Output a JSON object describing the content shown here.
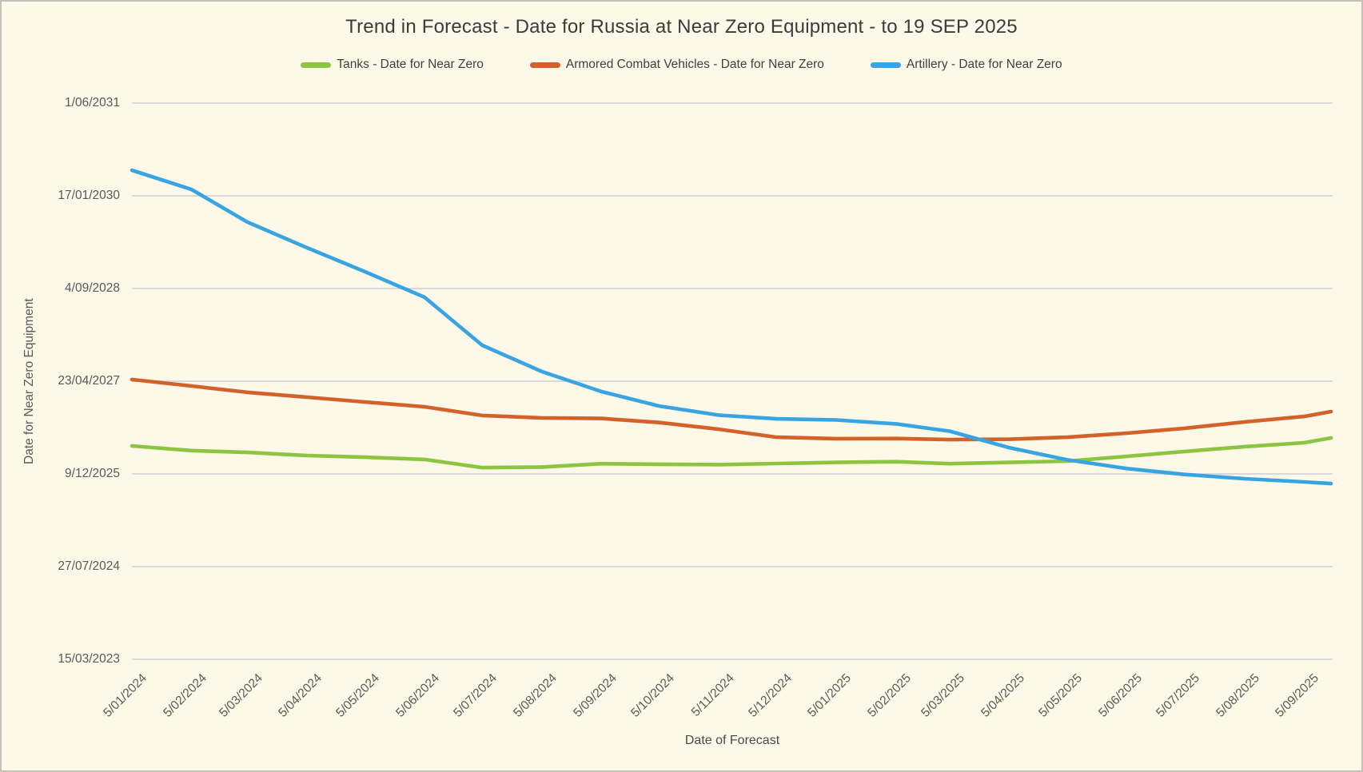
{
  "chart_data": {
    "type": "line",
    "title": "Trend in Forecast - Date for Russia at Near Zero Equipment - to 19 SEP 2025",
    "xlabel": "Date of Forecast",
    "ylabel": "Date for Near Zero Equipment",
    "legend_position": "top",
    "grid": "horizontal-only",
    "colors": {
      "background": "#fdf8e7",
      "gridline": "#d9d9d9",
      "title_text": "#3b3b3b",
      "axis_text": "#595959"
    },
    "y_axis": {
      "type": "date",
      "min": "15/03/2023",
      "max": "1/06/2031",
      "tick_interval_days": 500,
      "tick_labels": [
        "1/06/2031",
        "17/01/2030",
        "4/09/2028",
        "23/04/2027",
        "9/12/2025",
        "27/07/2024",
        "15/03/2023"
      ]
    },
    "x_axis": {
      "type": "date",
      "min": "5/01/2024",
      "max": "19/09/2025",
      "tick_labels": [
        "5/01/2024",
        "5/02/2024",
        "5/03/2024",
        "5/04/2024",
        "5/05/2024",
        "5/06/2024",
        "5/07/2024",
        "5/08/2024",
        "5/09/2024",
        "5/10/2024",
        "5/11/2024",
        "5/12/2024",
        "5/01/2025",
        "5/02/2025",
        "5/03/2025",
        "5/04/2025",
        "5/05/2025",
        "5/06/2025",
        "5/07/2025",
        "5/08/2025",
        "5/09/2025"
      ]
    },
    "x": [
      "5/01/2024",
      "5/02/2024",
      "5/03/2024",
      "5/04/2024",
      "5/05/2024",
      "5/06/2024",
      "5/07/2024",
      "5/08/2024",
      "5/09/2024",
      "5/10/2024",
      "5/11/2024",
      "5/12/2024",
      "5/01/2025",
      "5/02/2025",
      "5/03/2025",
      "5/04/2025",
      "5/05/2025",
      "5/06/2025",
      "5/07/2025",
      "5/08/2025",
      "5/09/2025",
      "19/09/2025"
    ],
    "series": [
      {
        "name": "Tanks - Date for Near Zero",
        "color": "#8cc540",
        "y": [
          "9/05/2026",
          "14/04/2026",
          "4/04/2026",
          "18/03/2026",
          "9/03/2026",
          "25/02/2026",
          "12/01/2026",
          "15/01/2026",
          "2/02/2026",
          "30/01/2026",
          "28/01/2026",
          "3/02/2026",
          "9/02/2026",
          "13/02/2026",
          "2/02/2026",
          "9/02/2026",
          "16/02/2026",
          "14/03/2026",
          "9/04/2026",
          "5/05/2026",
          "26/05/2026",
          "21/06/2026"
        ]
      },
      {
        "name": "Armored Combat Vehicles - Date for Near Zero",
        "color": "#d2622a",
        "y": [
          "2/05/2027",
          "28/03/2027",
          "22/02/2027",
          "27/01/2027",
          "1/01/2027",
          "6/12/2026",
          "20/10/2026",
          "7/10/2026",
          "4/10/2026",
          "12/09/2026",
          "7/08/2026",
          "25/06/2026",
          "17/06/2026",
          "18/06/2026",
          "12/06/2026",
          "14/06/2026",
          "25/06/2026",
          "17/07/2026",
          "12/08/2026",
          "15/09/2026",
          "15/10/2026",
          "10/11/2026"
        ]
      },
      {
        "name": "Artillery - Date for Near Zero",
        "color": "#38a5e2",
        "y": [
          "4/06/2030",
          "20/02/2030",
          "28/08/2029",
          "12/04/2029",
          "4/12/2028",
          "19/07/2028",
          "3/11/2027",
          "14/06/2027",
          "26/02/2027",
          "10/12/2026",
          "22/10/2026",
          "2/10/2026",
          "26/09/2026",
          "5/09/2026",
          "27/07/2026",
          "29/04/2026",
          "23/02/2026",
          "7/01/2026",
          "6/12/2025",
          "13/11/2025",
          "27/10/2025",
          "18/10/2025"
        ]
      }
    ]
  }
}
